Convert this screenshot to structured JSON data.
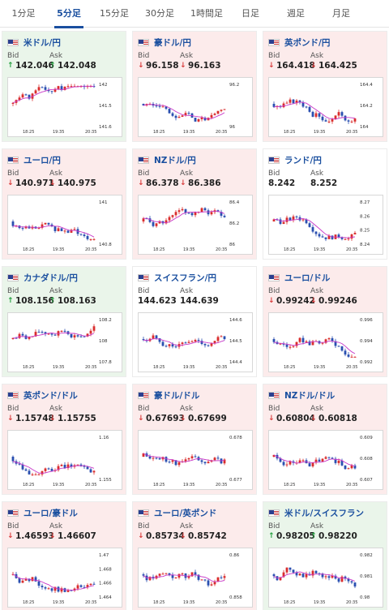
{
  "tabs": [
    {
      "label": "1分足",
      "active": false
    },
    {
      "label": "5分足",
      "active": true
    },
    {
      "label": "15分足",
      "active": false
    },
    {
      "label": "30分足",
      "active": false
    },
    {
      "label": "1時間足",
      "active": false
    },
    {
      "label": "日足",
      "active": false
    },
    {
      "label": "週足",
      "active": false
    },
    {
      "label": "月足",
      "active": false
    }
  ],
  "labels": {
    "bid": "Bid",
    "ask": "Ask"
  },
  "colors": {
    "accent": "#1a4f9f",
    "up": "#1f9d3a",
    "down": "#d83a3a",
    "card_up": "#eaf5ea",
    "card_down": "#fcebeb",
    "candle_up": "#d92d2d",
    "candle_down": "#2a4fb0",
    "ma": "#c837c8"
  },
  "cards": [
    {
      "pair": "米ドル/円",
      "flag_icon": "us-flag-icon",
      "trend": "up",
      "bid": "142.046",
      "ask": "142.048",
      "ticks": [
        "142",
        "141.5",
        "141.6"
      ],
      "x_ticks": [
        "18:25",
        "19:35",
        "20:35"
      ]
    },
    {
      "pair": "豪ドル/円",
      "flag_icon": "au-flag-icon",
      "trend": "down",
      "bid": "96.158",
      "ask": "96.163",
      "ticks": [
        "96.2",
        "96"
      ],
      "x_ticks": [
        "18:25",
        "19:35",
        "20:35"
      ]
    },
    {
      "pair": "英ポンド/円",
      "flag_icon": "gb-flag-icon",
      "trend": "down",
      "bid": "164.418",
      "ask": "164.425",
      "ticks": [
        "164.4",
        "164.2",
        "164"
      ],
      "x_ticks": [
        "18:25",
        "19:35",
        "20:35"
      ]
    },
    {
      "pair": "ユーロ/円",
      "flag_icon": "eu-flag-icon",
      "trend": "down",
      "bid": "140.971",
      "ask": "140.975",
      "ticks": [
        "141",
        "140.8"
      ],
      "x_ticks": [
        "18:25",
        "19:35",
        "20:35"
      ]
    },
    {
      "pair": "NZドル/円",
      "flag_icon": "nz-flag-icon",
      "trend": "down",
      "bid": "86.378",
      "ask": "86.386",
      "ticks": [
        "86.4",
        "86.2",
        "86"
      ],
      "x_ticks": [
        "18:25",
        "19:35",
        "20:35"
      ]
    },
    {
      "pair": "ランド/円",
      "flag_icon": "za-flag-icon",
      "trend": "flat",
      "bid": "8.242",
      "ask": "8.252",
      "ticks": [
        "8.27",
        "8.26",
        "8.25",
        "8.24"
      ],
      "x_ticks": [
        "18:25",
        "19:35",
        "20:35"
      ]
    },
    {
      "pair": "カナダドル/円",
      "flag_icon": "ca-flag-icon",
      "trend": "up",
      "bid": "108.156",
      "ask": "108.163",
      "ticks": [
        "108.2",
        "108",
        "107.8"
      ],
      "x_ticks": [
        "18:25",
        "19:35",
        "20:35"
      ]
    },
    {
      "pair": "スイスフラン/円",
      "flag_icon": "ch-flag-icon",
      "trend": "flat",
      "bid": "144.623",
      "ask": "144.639",
      "ticks": [
        "144.6",
        "144.5",
        "144.4"
      ],
      "x_ticks": [
        "18:25",
        "19:35",
        "20:35"
      ]
    },
    {
      "pair": "ユーロ/ドル",
      "flag_icon": "eu-flag-icon",
      "trend": "down",
      "bid": "0.99242",
      "ask": "0.99246",
      "ticks": [
        "0.996",
        "0.994",
        "0.992"
      ],
      "x_ticks": [
        "18:25",
        "19:35",
        "20:35"
      ]
    },
    {
      "pair": "英ポンド/ドル",
      "flag_icon": "gb-flag-icon",
      "trend": "down",
      "bid": "1.15748",
      "ask": "1.15755",
      "ticks": [
        "1.16",
        "1.155"
      ],
      "x_ticks": [
        "18:25",
        "19:35",
        "20:35"
      ]
    },
    {
      "pair": "豪ドル/ドル",
      "flag_icon": "au-flag-icon",
      "trend": "down",
      "bid": "0.67693",
      "ask": "0.67699",
      "ticks": [
        "0.678",
        "0.677"
      ],
      "x_ticks": [
        "18:25",
        "19:35",
        "20:35"
      ]
    },
    {
      "pair": "NZドル/ドル",
      "flag_icon": "nz-flag-icon",
      "trend": "down",
      "bid": "0.60804",
      "ask": "0.60818",
      "ticks": [
        "0.609",
        "0.608",
        "0.607"
      ],
      "x_ticks": [
        "18:25",
        "19:35",
        "20:35"
      ]
    },
    {
      "pair": "ユーロ/豪ドル",
      "flag_icon": "eu-flag-icon",
      "trend": "down",
      "bid": "1.46593",
      "ask": "1.46607",
      "ticks": [
        "1.47",
        "1.468",
        "1.466",
        "1.464"
      ],
      "x_ticks": [
        "18:25",
        "19:35",
        "20:35"
      ]
    },
    {
      "pair": "ユーロ/英ポンド",
      "flag_icon": "eu-flag-icon",
      "trend": "down",
      "bid": "0.85734",
      "ask": "0.85742",
      "ticks": [
        "0.86",
        "0.858"
      ],
      "x_ticks": [
        "18:25",
        "19:35",
        "20:35"
      ]
    },
    {
      "pair": "米ドル/スイスフラン",
      "flag_icon": "us-flag-icon",
      "trend": "up",
      "bid": "0.98205",
      "ask": "0.98220",
      "ticks": [
        "0.982",
        "0.981",
        "0.98"
      ],
      "x_ticks": [
        "18:25",
        "19:35",
        "20:35"
      ]
    }
  ]
}
